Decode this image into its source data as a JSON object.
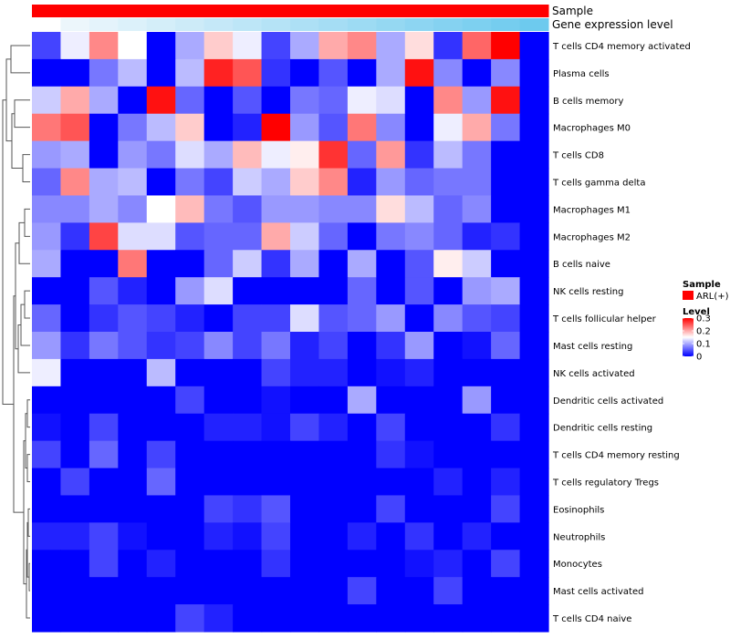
{
  "chart_data": {
    "type": "heatmap",
    "annotations": [
      {
        "name": "Sample",
        "colors": [
          "#ff0000"
        ]
      },
      {
        "name": "Gene expression level",
        "colors": [
          "#ffffff",
          "#ecf6fb",
          "#e4f3fb",
          "#dcf1fa",
          "#d4eef9",
          "#cdebf8",
          "#c5e8f8",
          "#bde6f7",
          "#b5e3f6",
          "#ade0f5",
          "#a5ddf4",
          "#9ddbf3",
          "#95d8f2",
          "#8dd5f2",
          "#85d2f1",
          "#7dd0f0",
          "#75cdef",
          "#6dcaee"
        ]
      }
    ],
    "rows": [
      "T cells CD4 memory activated",
      "Plasma cells",
      "B cells memory",
      "Macrophages M0",
      "T cells CD8",
      "T cells gamma delta",
      "Macrophages M1",
      "Macrophages M2",
      "B cells naive",
      "NK cells resting",
      "T cells follicular helper",
      "Mast cells resting",
      "NK cells activated",
      "Dendritic cells activated",
      "Dendritic cells resting",
      "T cells CD4 memory resting",
      "T cells regulatory  Tregs",
      "Eosinophils",
      "Neutrophils",
      "Monocytes",
      "Mast cells activated",
      "T cells CD4 naive"
    ],
    "n_columns": 18,
    "values": [
      [
        0.04,
        0.14,
        0.22,
        0.15,
        0.0,
        0.1,
        0.18,
        0.14,
        0.04,
        0.1,
        0.2,
        0.22,
        0.1,
        0.17,
        0.03,
        0.24,
        0.3,
        0.0
      ],
      [
        0.0,
        0.0,
        0.07,
        0.11,
        0.0,
        0.11,
        0.28,
        0.25,
        0.03,
        0.0,
        0.05,
        0.0,
        0.1,
        0.29,
        0.08,
        0.0,
        0.08,
        0.0
      ],
      [
        0.12,
        0.2,
        0.1,
        0.0,
        0.29,
        0.06,
        0.0,
        0.05,
        0.0,
        0.07,
        0.06,
        0.14,
        0.13,
        0.0,
        0.22,
        0.09,
        0.29,
        0.0
      ],
      [
        0.23,
        0.25,
        0.0,
        0.07,
        0.11,
        0.18,
        0.0,
        0.02,
        0.3,
        0.09,
        0.05,
        0.23,
        0.08,
        0.0,
        0.14,
        0.2,
        0.07,
        0.0
      ],
      [
        0.09,
        0.1,
        0.0,
        0.09,
        0.07,
        0.13,
        0.1,
        0.19,
        0.14,
        0.16,
        0.27,
        0.06,
        0.21,
        0.03,
        0.11,
        0.07,
        0.0,
        0.0
      ],
      [
        0.06,
        0.22,
        0.1,
        0.11,
        0.0,
        0.07,
        0.04,
        0.12,
        0.1,
        0.18,
        0.22,
        0.02,
        0.09,
        0.06,
        0.07,
        0.07,
        0.0,
        0.0
      ],
      [
        0.08,
        0.08,
        0.1,
        0.08,
        0.15,
        0.19,
        0.07,
        0.05,
        0.09,
        0.09,
        0.08,
        0.08,
        0.17,
        0.11,
        0.06,
        0.08,
        0.0,
        0.0
      ],
      [
        0.09,
        0.03,
        0.26,
        0.13,
        0.13,
        0.05,
        0.06,
        0.06,
        0.2,
        0.12,
        0.06,
        0.0,
        0.07,
        0.08,
        0.06,
        0.02,
        0.03,
        0.0
      ],
      [
        0.1,
        0.0,
        0.0,
        0.23,
        0.0,
        0.0,
        0.06,
        0.12,
        0.03,
        0.1,
        0.0,
        0.1,
        0.0,
        0.05,
        0.16,
        0.12,
        0.0,
        0.0
      ],
      [
        0.0,
        0.0,
        0.05,
        0.02,
        0.0,
        0.09,
        0.13,
        0.0,
        0.0,
        0.0,
        0.0,
        0.06,
        0.0,
        0.05,
        0.0,
        0.09,
        0.1,
        0.0
      ],
      [
        0.06,
        0.0,
        0.03,
        0.05,
        0.04,
        0.02,
        0.0,
        0.04,
        0.04,
        0.13,
        0.05,
        0.06,
        0.09,
        0.0,
        0.08,
        0.05,
        0.04,
        0.0
      ],
      [
        0.09,
        0.03,
        0.07,
        0.05,
        0.03,
        0.04,
        0.08,
        0.04,
        0.07,
        0.02,
        0.04,
        0.0,
        0.03,
        0.09,
        0.0,
        0.01,
        0.06,
        0.0
      ],
      [
        0.14,
        0.0,
        0.0,
        0.0,
        0.11,
        0.0,
        0.0,
        0.0,
        0.04,
        0.02,
        0.02,
        0.0,
        0.01,
        0.02,
        0.0,
        0.0,
        0.0,
        0.0
      ],
      [
        0.0,
        0.0,
        0.0,
        0.0,
        0.0,
        0.04,
        0.0,
        0.0,
        0.01,
        0.0,
        0.0,
        0.1,
        0.0,
        0.0,
        0.0,
        0.09,
        0.0,
        0.0
      ],
      [
        0.01,
        0.0,
        0.04,
        0.0,
        0.0,
        0.0,
        0.02,
        0.02,
        0.01,
        0.04,
        0.02,
        0.0,
        0.04,
        0.0,
        0.0,
        0.0,
        0.03,
        0.0
      ],
      [
        0.04,
        0.0,
        0.06,
        0.0,
        0.04,
        0.0,
        0.0,
        0.0,
        0.0,
        0.0,
        0.0,
        0.0,
        0.03,
        0.01,
        0.0,
        0.0,
        0.0,
        0.0
      ],
      [
        0.0,
        0.04,
        0.0,
        0.0,
        0.06,
        0.0,
        0.0,
        0.0,
        0.0,
        0.0,
        0.0,
        0.0,
        0.0,
        0.0,
        0.02,
        0.0,
        0.02,
        0.0
      ],
      [
        0.0,
        0.0,
        0.0,
        0.0,
        0.0,
        0.0,
        0.04,
        0.03,
        0.05,
        0.0,
        0.0,
        0.0,
        0.04,
        0.0,
        0.0,
        0.0,
        0.04,
        0.0
      ],
      [
        0.02,
        0.02,
        0.04,
        0.01,
        0.0,
        0.0,
        0.02,
        0.01,
        0.04,
        0.0,
        0.0,
        0.02,
        0.0,
        0.03,
        0.0,
        0.02,
        0.0,
        0.0
      ],
      [
        0.0,
        0.0,
        0.04,
        0.0,
        0.02,
        0.0,
        0.0,
        0.0,
        0.03,
        0.0,
        0.0,
        0.0,
        0.0,
        0.01,
        0.02,
        0.0,
        0.04,
        0.0
      ],
      [
        0.0,
        0.0,
        0.0,
        0.0,
        0.0,
        0.0,
        0.0,
        0.0,
        0.0,
        0.0,
        0.0,
        0.04,
        0.0,
        0.0,
        0.04,
        0.0,
        0.0,
        0.0
      ],
      [
        0.0,
        0.0,
        0.0,
        0.0,
        0.0,
        0.04,
        0.02,
        0.0,
        0.0,
        0.0,
        0.0,
        0.0,
        0.0,
        0.0,
        0.0,
        0.0,
        0.0,
        0.0
      ]
    ],
    "color_scale": {
      "min": 0,
      "max": 0.3,
      "low": "#0000ff",
      "mid": "#ffffff",
      "high": "#ff0000"
    },
    "legend": {
      "sample_title": "Sample",
      "sample_entry": "ARL(+)",
      "sample_color": "#ff0000",
      "level_title": "Level",
      "level_ticks": [
        0,
        0.1,
        0.2,
        0.3
      ],
      "level_tick_labels": [
        "0",
        "0.1",
        "0.2",
        "0.3"
      ]
    },
    "dendrogram": "row-clustering"
  }
}
